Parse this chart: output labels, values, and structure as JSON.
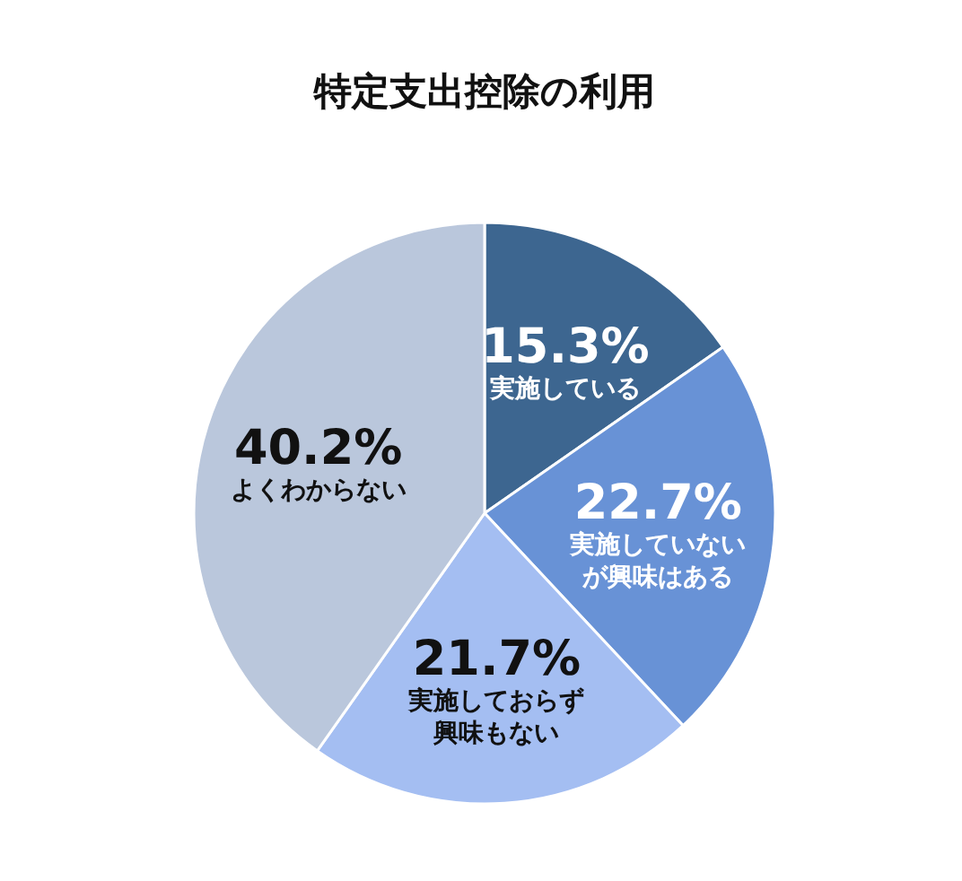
{
  "chart_data": {
    "type": "pie",
    "title": "特定支出控除の利用",
    "categories": [
      "実施している",
      "実施していないが興味はある",
      "実施しておらず興味もない",
      "よくわからない"
    ],
    "values": [
      15.3,
      22.7,
      21.7,
      40.2
    ],
    "value_labels": [
      "15.3%",
      "22.7%",
      "21.7%",
      "40.2%"
    ],
    "colors": [
      "#3d6690",
      "#6892d6",
      "#a4bef2",
      "#bac7dc"
    ]
  }
}
